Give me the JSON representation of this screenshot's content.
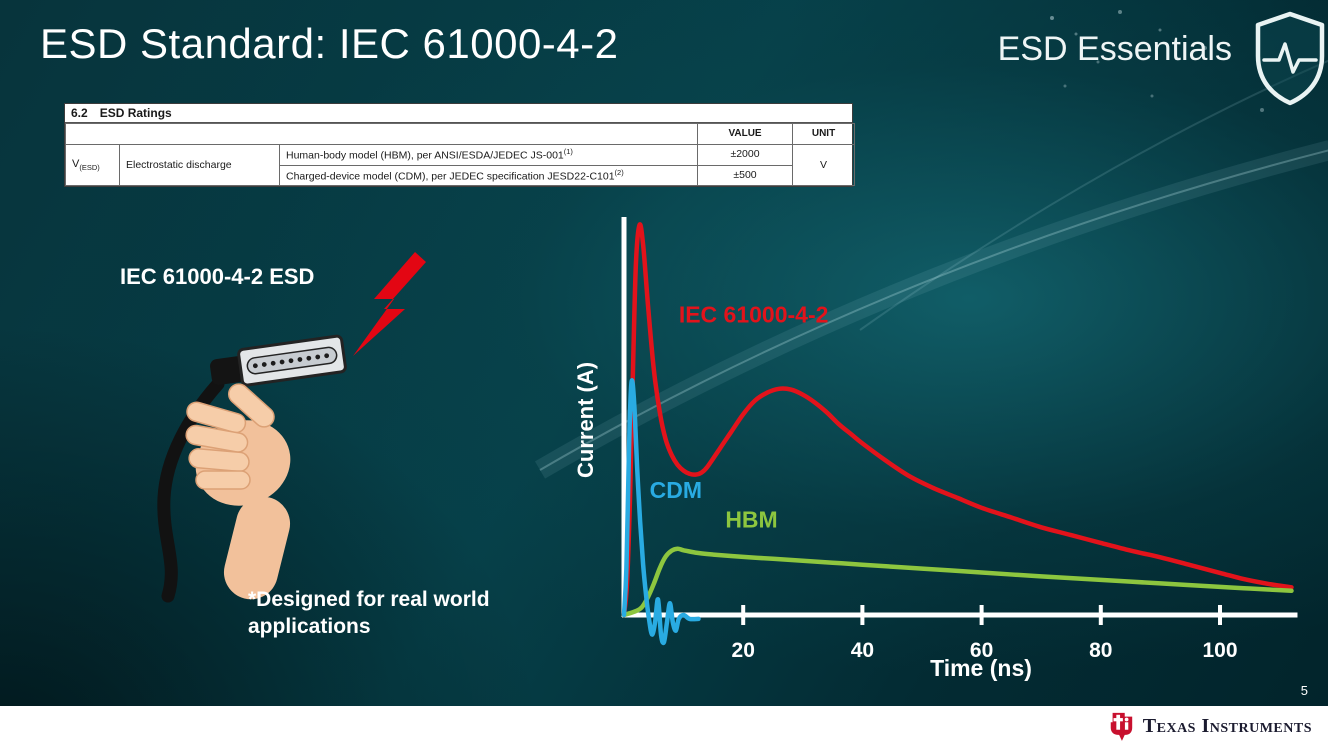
{
  "slide": {
    "title": "ESD Standard: IEC 61000-4-2",
    "series_label": "ESD Essentials",
    "page_number": "5",
    "footer_brand": "Texas Instruments"
  },
  "table": {
    "section_number": "6.2",
    "section_title": "ESD Ratings",
    "value_header": "VALUE",
    "unit_header": "UNIT",
    "param_symbol": "V",
    "param_subscript": "(ESD)",
    "param_name": "Electrostatic discharge",
    "rows": [
      {
        "model": "Human-body model (HBM), per ANSI/ESDA/JEDEC JS-001",
        "note_ref": "(1)",
        "value": "±2000"
      },
      {
        "model": "Charged-device model (CDM), per JEDEC specification JESD22-C101",
        "note_ref": "(2)",
        "value": "±500"
      }
    ],
    "unit": "V"
  },
  "illustration": {
    "label": "IEC 61000-4-2 ESD",
    "note": "*Designed for real world applications"
  },
  "chart_data": {
    "type": "line",
    "title": "",
    "xlabel": "Time (ns)",
    "ylabel": "Current (A)",
    "x_ticks": [
      20,
      40,
      60,
      80,
      100
    ],
    "xlim": [
      0,
      113
    ],
    "ylim": [
      -0.08,
      1.05
    ],
    "grid": false,
    "y_units": "relative amplitude (no tick labels shown; IEC peak = 1.0)",
    "series": [
      {
        "name": "IEC 61000-4-2",
        "color": "#e2131b",
        "label_pos": {
          "t": 9.2,
          "a": 0.75
        },
        "points": [
          [
            0,
            0
          ],
          [
            0.5,
            0.08
          ],
          [
            1,
            0.3
          ],
          [
            1.5,
            0.62
          ],
          [
            2,
            0.9
          ],
          [
            2.6,
            1.0
          ],
          [
            3.2,
            0.95
          ],
          [
            4,
            0.8
          ],
          [
            5,
            0.63
          ],
          [
            6,
            0.52
          ],
          [
            7,
            0.45
          ],
          [
            8,
            0.41
          ],
          [
            9,
            0.385
          ],
          [
            10,
            0.37
          ],
          [
            11,
            0.362
          ],
          [
            12,
            0.36
          ],
          [
            13,
            0.365
          ],
          [
            14,
            0.38
          ],
          [
            16,
            0.425
          ],
          [
            18,
            0.47
          ],
          [
            20,
            0.515
          ],
          [
            22,
            0.55
          ],
          [
            24,
            0.57
          ],
          [
            26,
            0.58
          ],
          [
            28,
            0.578
          ],
          [
            30,
            0.565
          ],
          [
            32,
            0.545
          ],
          [
            34,
            0.52
          ],
          [
            36,
            0.49
          ],
          [
            38,
            0.465
          ],
          [
            40,
            0.44
          ],
          [
            44,
            0.395
          ],
          [
            48,
            0.355
          ],
          [
            52,
            0.325
          ],
          [
            56,
            0.3
          ],
          [
            60,
            0.275
          ],
          [
            65,
            0.25
          ],
          [
            70,
            0.225
          ],
          [
            75,
            0.205
          ],
          [
            80,
            0.185
          ],
          [
            85,
            0.165
          ],
          [
            90,
            0.148
          ],
          [
            95,
            0.128
          ],
          [
            100,
            0.108
          ],
          [
            104,
            0.092
          ],
          [
            108,
            0.08
          ],
          [
            112,
            0.071
          ]
        ]
      },
      {
        "name": "HBM",
        "color": "#8dc63f",
        "label_pos": {
          "t": 17,
          "a": 0.225
        },
        "points": [
          [
            0,
            0
          ],
          [
            2,
            0.01
          ],
          [
            3,
            0.02
          ],
          [
            4,
            0.045
          ],
          [
            5,
            0.08
          ],
          [
            6,
            0.12
          ],
          [
            7,
            0.15
          ],
          [
            8,
            0.165
          ],
          [
            9,
            0.17
          ],
          [
            10,
            0.166
          ],
          [
            12,
            0.16
          ],
          [
            15,
            0.155
          ],
          [
            20,
            0.149
          ],
          [
            25,
            0.144
          ],
          [
            30,
            0.139
          ],
          [
            35,
            0.134
          ],
          [
            40,
            0.129
          ],
          [
            50,
            0.119
          ],
          [
            60,
            0.109
          ],
          [
            70,
            0.099
          ],
          [
            80,
            0.09
          ],
          [
            90,
            0.081
          ],
          [
            100,
            0.072
          ],
          [
            105,
            0.068
          ],
          [
            112,
            0.062
          ]
        ]
      },
      {
        "name": "CDM",
        "color": "#29abe2",
        "label_pos": {
          "t": 4.3,
          "a": 0.3
        },
        "points": [
          [
            0,
            0
          ],
          [
            0.4,
            0.12
          ],
          [
            0.8,
            0.4
          ],
          [
            1.1,
            0.56
          ],
          [
            1.4,
            0.6
          ],
          [
            1.8,
            0.52
          ],
          [
            2.2,
            0.38
          ],
          [
            2.7,
            0.24
          ],
          [
            3.2,
            0.13
          ],
          [
            3.7,
            0.05
          ],
          [
            4.2,
            -0.01
          ],
          [
            4.7,
            -0.05
          ],
          [
            5.2,
            -0.02
          ],
          [
            5.7,
            0.04
          ],
          [
            6.2,
            -0.05
          ],
          [
            6.7,
            -0.07
          ],
          [
            7.2,
            -0.02
          ],
          [
            7.7,
            0.03
          ],
          [
            8.2,
            -0.02
          ],
          [
            8.7,
            -0.04
          ],
          [
            9.2,
            -0.01
          ],
          [
            10,
            0
          ],
          [
            11,
            -0.01
          ],
          [
            12.5,
            -0.01
          ]
        ]
      }
    ]
  }
}
